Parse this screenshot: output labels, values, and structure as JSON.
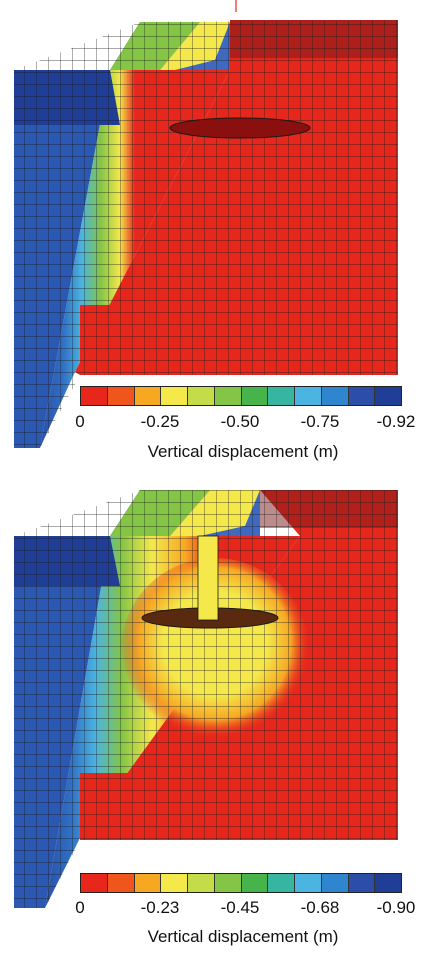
{
  "panels": [
    {
      "colorbar": {
        "ticks": [
          "0",
          "-0.25",
          "-0.50",
          "-0.75",
          "-0.92"
        ],
        "title": "Vertical displacement (m)"
      }
    },
    {
      "colorbar": {
        "ticks": [
          "0",
          "-0.23",
          "-0.45",
          "-0.68",
          "-0.90"
        ],
        "title": "Vertical displacement (m)"
      }
    }
  ],
  "colors": {
    "scale": [
      "#e8271c",
      "#f0561c",
      "#f7a823",
      "#f4e84a",
      "#c3dc48",
      "#84c545",
      "#46b44b",
      "#36b6a0",
      "#4bb4e0",
      "#2f86cf",
      "#2b4fa8",
      "#213e96"
    ],
    "mesh_line": "#1a1a1a"
  }
}
